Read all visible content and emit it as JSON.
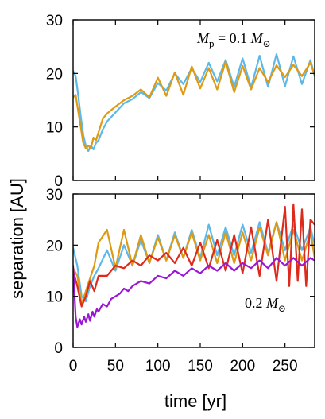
{
  "figure": {
    "ylabel": "separation [AU]",
    "xlabel": "time [yr]"
  },
  "colors": {
    "blue": "#5bb8e8",
    "orange": "#dd9a12",
    "red": "#dd2a1c",
    "purple": "#9a18d4"
  },
  "chart_data": [
    {
      "type": "line",
      "annotation": "M_p = 0.1 M_sun",
      "xlim": [
        0,
        285
      ],
      "ylim": [
        0,
        30
      ],
      "xticks": [
        0,
        50,
        100,
        150,
        200,
        250
      ],
      "xtick_labels": [
        "",
        "",
        "",
        "",
        "",
        ""
      ],
      "yticks": [
        0,
        10,
        20,
        30
      ],
      "ytick_labels": [
        "0",
        "10",
        "20",
        "30"
      ],
      "series": [
        {
          "color": "blue",
          "x": [
            0,
            3,
            6,
            9,
            12,
            15,
            18,
            21,
            24,
            27,
            30,
            35,
            40,
            50,
            60,
            70,
            80,
            90,
            100,
            110,
            120,
            130,
            140,
            150,
            160,
            170,
            180,
            190,
            200,
            210,
            220,
            230,
            240,
            250,
            260,
            270,
            280,
            285
          ],
          "y": [
            20.5,
            19.5,
            16,
            12,
            8.5,
            6.5,
            5.5,
            6.5,
            5.8,
            7,
            7.5,
            9.5,
            11,
            12.7,
            14.4,
            15.2,
            16.5,
            15.4,
            18.2,
            16.8,
            20,
            18,
            21,
            18.4,
            22,
            18.5,
            22.5,
            17.5,
            22.8,
            17.4,
            23.3,
            17.5,
            23.6,
            17.6,
            23.2,
            18,
            22.5,
            19.5
          ]
        },
        {
          "color": "orange",
          "x": [
            0,
            3,
            6,
            9,
            12,
            15,
            18,
            21,
            24,
            27,
            30,
            35,
            40,
            50,
            60,
            70,
            80,
            90,
            100,
            110,
            120,
            130,
            140,
            150,
            160,
            170,
            180,
            190,
            200,
            210,
            220,
            230,
            240,
            250,
            260,
            270,
            280,
            285
          ],
          "y": [
            15.5,
            16,
            13,
            10,
            7,
            6,
            6.5,
            6,
            8,
            7.5,
            9,
            11.5,
            12.5,
            13.8,
            15,
            15.8,
            17,
            15.5,
            19.2,
            15.8,
            20.2,
            16,
            21.3,
            17.2,
            21,
            17,
            22.2,
            16.5,
            21.4,
            17,
            21,
            18.4,
            21.5,
            19.3,
            21.6,
            19.5,
            22,
            19.6
          ]
        }
      ]
    },
    {
      "type": "line",
      "annotation": "0.2 M_sun",
      "xlim": [
        0,
        285
      ],
      "ylim": [
        0,
        30
      ],
      "xticks": [
        0,
        50,
        100,
        150,
        200,
        250
      ],
      "xtick_labels": [
        "0",
        "50",
        "100",
        "150",
        "200",
        "250"
      ],
      "yticks": [
        0,
        10,
        20,
        30
      ],
      "ytick_labels": [
        "0",
        "10",
        "20",
        "30"
      ],
      "series": [
        {
          "color": "blue",
          "x": [
            0,
            5,
            10,
            15,
            20,
            25,
            30,
            40,
            50,
            60,
            70,
            80,
            90,
            100,
            110,
            120,
            130,
            140,
            150,
            160,
            170,
            180,
            190,
            200,
            210,
            220,
            230,
            240,
            250,
            260,
            270,
            280,
            285
          ],
          "y": [
            19.5,
            16,
            10,
            9,
            12,
            14,
            15.5,
            19,
            15,
            20,
            16,
            21,
            16.5,
            22,
            17,
            22.5,
            17.5,
            23,
            17.5,
            24,
            18,
            23.5,
            18,
            24,
            18.5,
            24.5,
            18.5,
            24.5,
            19,
            24,
            19,
            23.5,
            20
          ]
        },
        {
          "color": "orange",
          "x": [
            0,
            5,
            10,
            15,
            20,
            25,
            30,
            40,
            50,
            60,
            70,
            80,
            90,
            100,
            110,
            120,
            130,
            140,
            150,
            160,
            170,
            180,
            190,
            200,
            210,
            220,
            230,
            240,
            250,
            260,
            270,
            280,
            285
          ],
          "y": [
            15.5,
            14,
            8.5,
            11,
            13.5,
            16,
            20.5,
            23,
            15.5,
            23,
            16,
            22,
            16.5,
            21.5,
            17,
            22,
            17.5,
            22.5,
            17,
            22,
            16.5,
            22.5,
            16.5,
            22.5,
            17,
            23.5,
            18,
            24.5,
            17,
            23,
            17,
            22.5,
            17.5
          ]
        },
        {
          "color": "red",
          "x": [
            0,
            5,
            10,
            15,
            20,
            25,
            30,
            40,
            50,
            60,
            70,
            80,
            90,
            100,
            110,
            120,
            130,
            140,
            150,
            160,
            170,
            180,
            190,
            200,
            210,
            220,
            230,
            240,
            250,
            255,
            260,
            265,
            270,
            275,
            280,
            285
          ],
          "y": [
            15,
            12,
            8,
            10,
            13,
            11,
            14,
            14,
            16,
            15.5,
            17,
            16,
            18,
            17,
            18.5,
            16.5,
            19.5,
            16,
            20.5,
            15.5,
            21,
            15,
            22,
            14.5,
            23.5,
            14,
            25,
            13,
            27.5,
            12,
            28,
            13,
            27,
            12,
            25,
            24
          ]
        },
        {
          "color": "purple",
          "x": [
            0,
            3,
            5,
            8,
            10,
            13,
            15,
            18,
            20,
            23,
            25,
            28,
            30,
            35,
            40,
            45,
            50,
            55,
            60,
            65,
            70,
            80,
            90,
            100,
            110,
            120,
            130,
            140,
            150,
            160,
            170,
            180,
            190,
            200,
            210,
            220,
            230,
            240,
            250,
            260,
            270,
            280,
            285
          ],
          "y": [
            16,
            6,
            4,
            5.5,
            4.5,
            6,
            5,
            6.5,
            5.2,
            7,
            6,
            7.5,
            7,
            8.5,
            8,
            9.5,
            10,
            10.5,
            11.5,
            11,
            12,
            13,
            12.5,
            14,
            13.5,
            15,
            14,
            15.5,
            14.5,
            16,
            15,
            16.5,
            15,
            16.5,
            15.5,
            17,
            15.5,
            17.5,
            16,
            17.5,
            16,
            17.5,
            17
          ]
        }
      ]
    }
  ]
}
